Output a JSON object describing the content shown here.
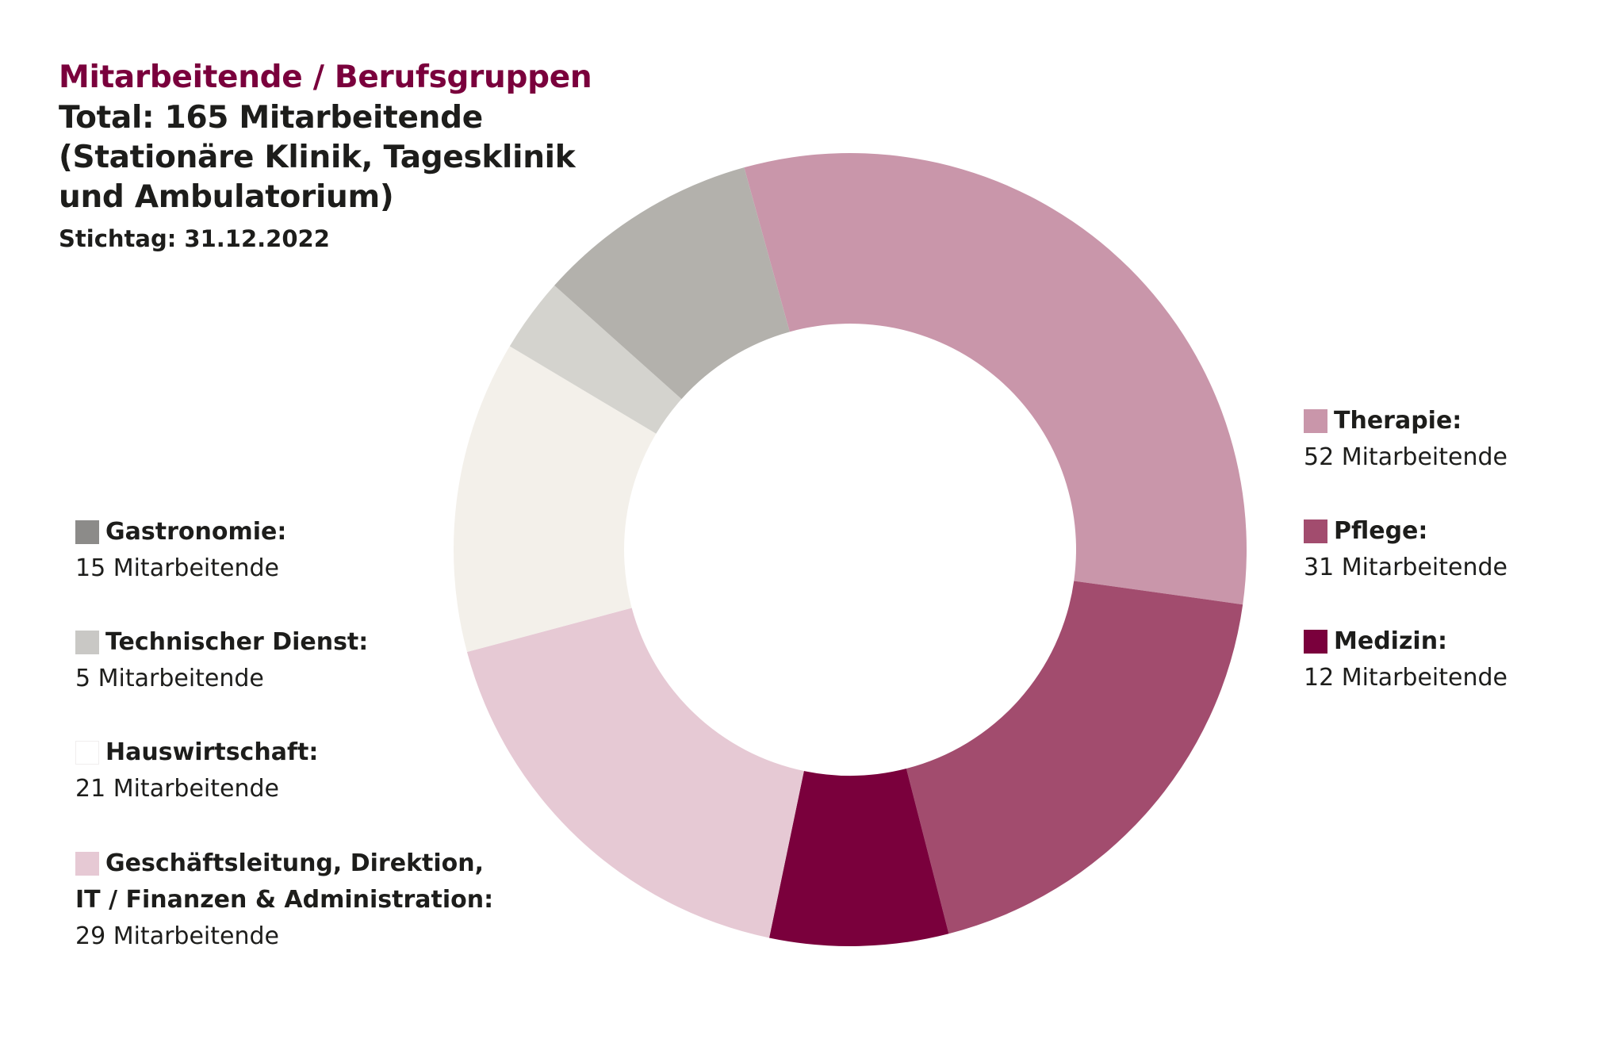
{
  "header": {
    "title": "Mitarbeitende / Berufsgruppen",
    "subtitle_line1": "Total: 165 Mitarbeitende",
    "subtitle_line2": "(Stationäre Klinik, Tagesklinik",
    "subtitle_line3": "und Ambulatorium)",
    "stichtag": "Stichtag: 31.12.2022"
  },
  "legend": {
    "therapie": {
      "label": "Therapie:",
      "value": "52 Mitarbeitende",
      "color": "#c996aa"
    },
    "pflege": {
      "label": "Pflege:",
      "value": "31 Mitarbeitende",
      "color": "#a24c6e"
    },
    "medizin": {
      "label": "Medizin:",
      "value": "12 Mitarbeitende",
      "color": "#7a003c"
    },
    "gastronomie": {
      "label": "Gastronomie:",
      "value": "15 Mitarbeitende",
      "color": "#8c8b89"
    },
    "technischer_dienst": {
      "label": "Technischer Dienst:",
      "value": "5 Mitarbeitende",
      "color": "#c9c8c5"
    },
    "hauswirtschaft": {
      "label": "Hauswirtschaft:",
      "value": "21 Mitarbeitende",
      "color": "#ffffff"
    },
    "geschaeftsleitung": {
      "label_line1": "Geschäftsleitung, Direktion,",
      "label_line2": "IT / Finanzen & Administration:",
      "value": "29 Mitarbeitende",
      "color": "#e6c9d4"
    }
  },
  "chart_data": {
    "type": "pie",
    "title": "Mitarbeitende / Berufsgruppen",
    "categories": [
      "Therapie",
      "Pflege",
      "Medizin",
      "Geschäftsleitung, Direktion, IT / Finanzen & Administration",
      "Hauswirtschaft",
      "Technischer Dienst",
      "Gastronomie"
    ],
    "values": [
      52,
      31,
      12,
      29,
      21,
      5,
      15
    ],
    "colors": [
      "#c996aa",
      "#a24c6e",
      "#7a003c",
      "#e6c9d4",
      "#f3f0ea",
      "#d4d3ce",
      "#b3b1ac"
    ],
    "total": 165,
    "donut": true,
    "legend": "left and right of chart"
  }
}
